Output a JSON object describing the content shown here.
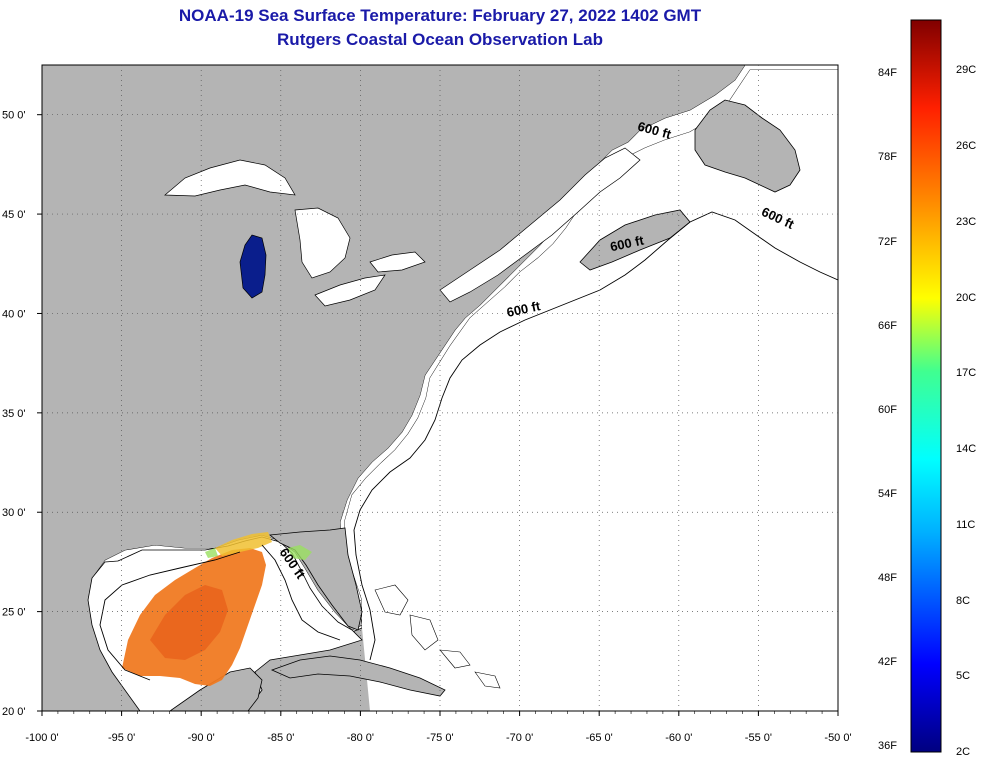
{
  "title": {
    "line1": "NOAA-19 Sea Surface Temperature:  February 27, 2022 1402 GMT",
    "line2": "Rutgers Coastal Ocean Observation Lab"
  },
  "map": {
    "lon_range": [
      -100,
      -50
    ],
    "lat_range": [
      20,
      52.5
    ],
    "lon_ticks": [
      {
        "lon": -100,
        "label": "-100 0'"
      },
      {
        "lon": -95,
        "label": "-95 0'"
      },
      {
        "lon": -90,
        "label": "-90 0'"
      },
      {
        "lon": -85,
        "label": "-85 0'"
      },
      {
        "lon": -80,
        "label": "-80 0'"
      },
      {
        "lon": -75,
        "label": "-75 0'"
      },
      {
        "lon": -70,
        "label": "-70 0'"
      },
      {
        "lon": -65,
        "label": "-65 0'"
      },
      {
        "lon": -60,
        "label": "-60 0'"
      },
      {
        "lon": -55,
        "label": "-55 0'"
      },
      {
        "lon": -50,
        "label": "-50 0'"
      }
    ],
    "lat_ticks": [
      {
        "lat": 50,
        "label": "50 0'"
      },
      {
        "lat": 45,
        "label": "45 0'"
      },
      {
        "lat": 40,
        "label": "40 0'"
      },
      {
        "lat": 35,
        "label": "35 0'"
      },
      {
        "lat": 30,
        "label": "30 0'"
      },
      {
        "lat": 25,
        "label": "25 0'"
      },
      {
        "lat": 20,
        "label": "20 0'"
      }
    ],
    "contour_labels": [
      {
        "text": "600 ft",
        "lon": -61.6,
        "lat": 49.0,
        "rotate": 15
      },
      {
        "text": "600 ft",
        "lon": -53.9,
        "lat": 44.6,
        "rotate": 25
      },
      {
        "text": "600 ft",
        "lon": -63.2,
        "lat": 43.3,
        "rotate": -12
      },
      {
        "text": "600 ft",
        "lon": -69.7,
        "lat": 40.0,
        "rotate": -12
      },
      {
        "text": "600 ft",
        "lon": -84.5,
        "lat": 27.3,
        "rotate": 55
      }
    ],
    "colors": {
      "land": "#b4b4b4",
      "ocean": "#ffffff",
      "gulf_sst": "#f07a22",
      "lake_michigan": "#0a1e8c"
    }
  },
  "colorbar": {
    "range_c": [
      2,
      31
    ],
    "f_labels": [
      "84F",
      "78F",
      "72F",
      "66F",
      "60F",
      "54F",
      "48F",
      "42F",
      "36F"
    ],
    "c_labels": [
      "29C",
      "26C",
      "23C",
      "20C",
      "17C",
      "14C",
      "11C",
      "8C",
      "5C",
      "2C"
    ]
  }
}
